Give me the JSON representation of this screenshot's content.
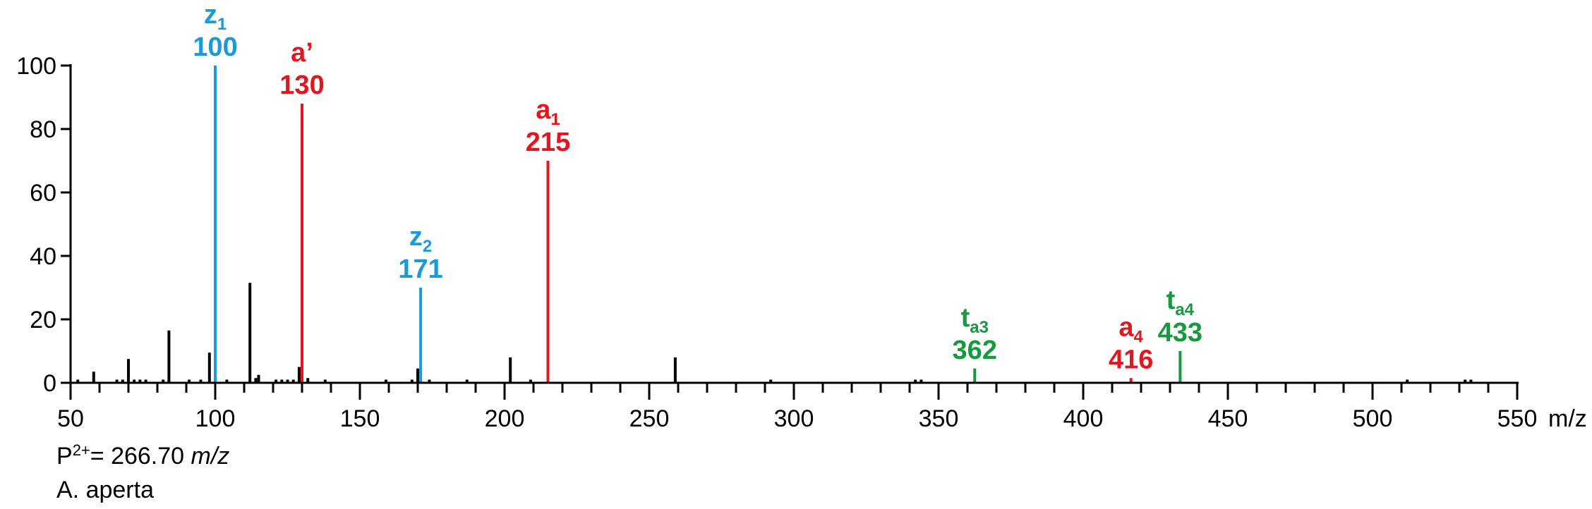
{
  "chart_data": {
    "type": "bar",
    "xlabel_unit": "m/z",
    "xlim": [
      50,
      550
    ],
    "ylim": [
      0,
      100
    ],
    "x_ticks": [
      50,
      100,
      150,
      200,
      250,
      300,
      350,
      400,
      450,
      500,
      550
    ],
    "y_ticks": [
      0,
      20,
      40,
      60,
      80,
      100
    ],
    "colors": {
      "unlabeled": "#000000",
      "z": "#1a9bd7",
      "a": "#e3151e",
      "t": "#169a3f"
    },
    "annotated_peaks": [
      {
        "ion": "z",
        "sub": "1",
        "mz": "100",
        "x": 100,
        "y": 100,
        "group": "z"
      },
      {
        "ion": "a’",
        "sub": "",
        "mz": "130",
        "x": 130,
        "y": 88,
        "group": "a"
      },
      {
        "ion": "z",
        "sub": "2",
        "mz": "171",
        "x": 171,
        "y": 30,
        "group": "z"
      },
      {
        "ion": "a",
        "sub": "1",
        "mz": "215",
        "x": 215,
        "y": 70,
        "group": "a"
      },
      {
        "ion": "t",
        "sub": "a3",
        "mz": "362",
        "x": 362.5,
        "y": 4.5,
        "group": "t"
      },
      {
        "ion": "a",
        "sub": "4",
        "mz": "416",
        "x": 416.5,
        "y": 1.5,
        "group": "a"
      },
      {
        "ion": "t",
        "sub": "a4",
        "mz": "433",
        "x": 433.5,
        "y": 10,
        "group": "t"
      }
    ],
    "peaks": [
      {
        "x": 52.5,
        "y": 1
      },
      {
        "x": 58,
        "y": 3.5
      },
      {
        "x": 66,
        "y": 1
      },
      {
        "x": 68,
        "y": 1
      },
      {
        "x": 70,
        "y": 7.5
      },
      {
        "x": 72,
        "y": 1
      },
      {
        "x": 74,
        "y": 1
      },
      {
        "x": 76,
        "y": 1
      },
      {
        "x": 82,
        "y": 1
      },
      {
        "x": 84,
        "y": 16.5
      },
      {
        "x": 91,
        "y": 1
      },
      {
        "x": 95,
        "y": 1
      },
      {
        "x": 98,
        "y": 9.5
      },
      {
        "x": 104,
        "y": 1
      },
      {
        "x": 112,
        "y": 31.5
      },
      {
        "x": 114,
        "y": 1.5
      },
      {
        "x": 115,
        "y": 2.5
      },
      {
        "x": 121,
        "y": 1
      },
      {
        "x": 123,
        "y": 1
      },
      {
        "x": 125,
        "y": 1
      },
      {
        "x": 127,
        "y": 1
      },
      {
        "x": 129,
        "y": 5
      },
      {
        "x": 132,
        "y": 1.5
      },
      {
        "x": 138,
        "y": 1
      },
      {
        "x": 159,
        "y": 1
      },
      {
        "x": 168,
        "y": 1
      },
      {
        "x": 170,
        "y": 4.5
      },
      {
        "x": 174,
        "y": 1
      },
      {
        "x": 187,
        "y": 1
      },
      {
        "x": 202,
        "y": 8
      },
      {
        "x": 209,
        "y": 1
      },
      {
        "x": 259,
        "y": 8
      },
      {
        "x": 292,
        "y": 1
      },
      {
        "x": 342,
        "y": 1
      },
      {
        "x": 344,
        "y": 1
      },
      {
        "x": 512,
        "y": 1
      },
      {
        "x": 532,
        "y": 1
      },
      {
        "x": 534,
        "y": 1
      }
    ]
  },
  "precursor": {
    "prefix": "P",
    "charge": "2+",
    "value": "= 266.70 ",
    "unit": "m/z"
  },
  "species": "A. aperta"
}
